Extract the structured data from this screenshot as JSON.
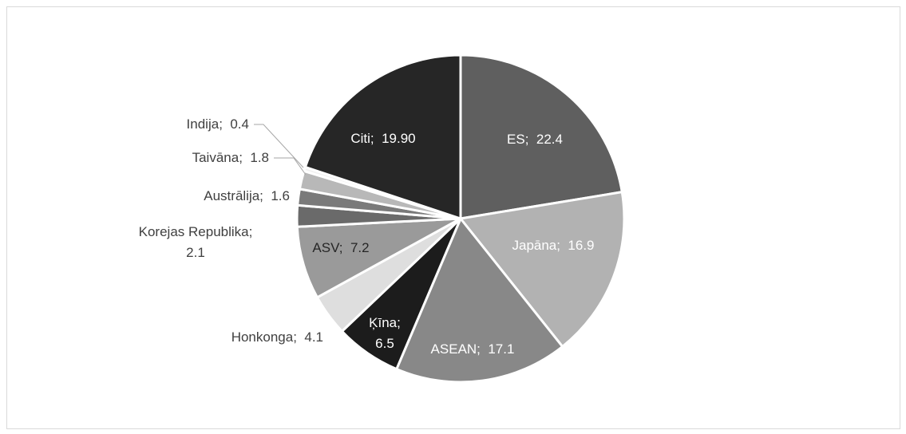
{
  "chart_data": {
    "type": "pie",
    "title": "",
    "slices": [
      {
        "label": "ES",
        "value": 22.4,
        "value_text": "22.4",
        "color": "#5f5f5f",
        "label_color": "#ffffff"
      },
      {
        "label": "Japāna",
        "value": 16.9,
        "value_text": "16.9",
        "color": "#b2b2b2",
        "label_color": "#ffffff"
      },
      {
        "label": "ASEAN",
        "value": 17.1,
        "value_text": "17.1",
        "color": "#888888",
        "label_color": "#ffffff"
      },
      {
        "label": "Ķīna",
        "value": 6.5,
        "value_text": "6.5",
        "color": "#1c1c1c",
        "label_color": "#ffffff"
      },
      {
        "label": "Honkonga",
        "value": 4.1,
        "value_text": "4.1",
        "color": "#dedede",
        "label_color": "#404040"
      },
      {
        "label": "ASV",
        "value": 7.2,
        "value_text": "7.2",
        "color": "#9a9a9a",
        "label_color": "#262626"
      },
      {
        "label": "Korejas Republika",
        "value": 2.1,
        "value_text": "2.1",
        "color": "#6a6a6a",
        "label_color": "#404040"
      },
      {
        "label": "Austrālija",
        "value": 1.6,
        "value_text": "1.6",
        "color": "#7a7a7a",
        "label_color": "#404040"
      },
      {
        "label": "Taivāna",
        "value": 1.8,
        "value_text": "1.8",
        "color": "#b8b8b8",
        "label_color": "#404040"
      },
      {
        "label": "Indija",
        "value": 0.4,
        "value_text": "0.4",
        "color": "#f2f2f2",
        "label_color": "#404040"
      },
      {
        "label": "Citi",
        "value": 19.9,
        "value_text": "19.90",
        "color": "#262626",
        "label_color": "#ffffff"
      }
    ]
  }
}
